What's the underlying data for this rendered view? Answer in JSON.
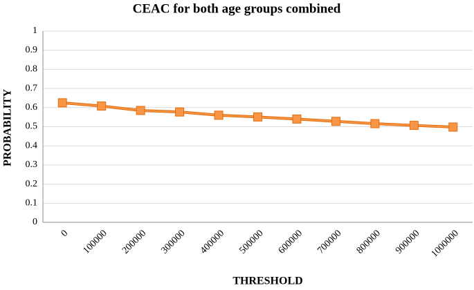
{
  "chart_data": {
    "type": "line",
    "title": "CEAC for both age groups combined",
    "x_label": "THRESHOLD",
    "y_label": "PROBABILITY",
    "categories": [
      "0",
      "100000",
      "200000",
      "300000",
      "400000",
      "500000",
      "600000",
      "700000",
      "800000",
      "900000",
      "1000000"
    ],
    "values": [
      0.625,
      0.608,
      0.585,
      0.577,
      0.56,
      0.551,
      0.54,
      0.528,
      0.516,
      0.507,
      0.498
    ],
    "color": "#f79646",
    "ylim": [
      0,
      1
    ],
    "yticks": [
      0,
      0.1,
      0.2,
      0.3,
      0.4,
      0.5,
      0.6,
      0.7,
      0.8,
      0.9,
      1
    ],
    "grid": true
  }
}
